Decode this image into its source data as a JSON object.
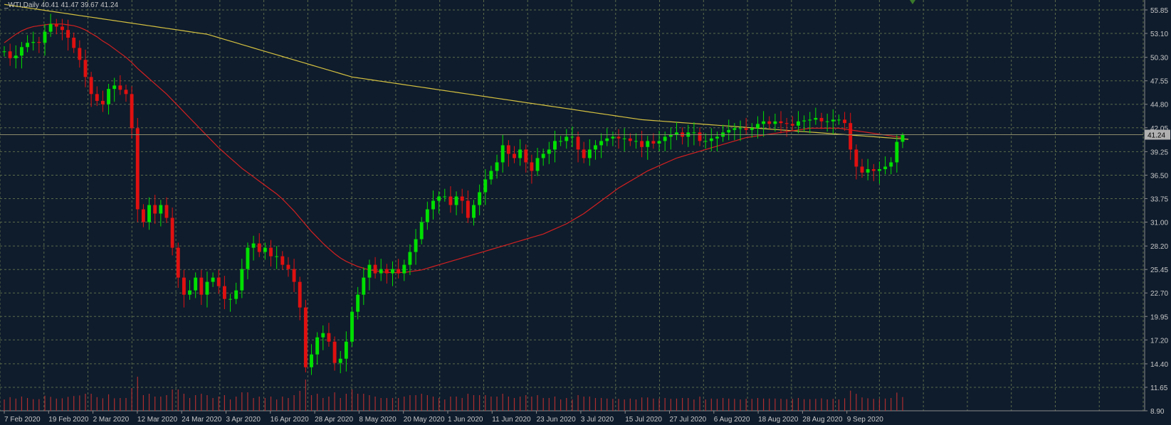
{
  "chart_data": {
    "type": "candlestick",
    "symbol_label": "_WTI,Daily  40.41 41.47 39.67 41.24",
    "ohlc_last": {
      "open": 40.41,
      "high": 41.47,
      "low": 39.67,
      "close": 41.24
    },
    "current_price_label": "41.24",
    "y_ticks": [
      "55.85",
      "53.10",
      "50.30",
      "47.55",
      "44.80",
      "42.05",
      "39.25",
      "36.50",
      "33.75",
      "31.00",
      "28.20",
      "25.45",
      "22.70",
      "19.95",
      "17.20",
      "14.40",
      "11.65",
      "8.90"
    ],
    "x_ticks": [
      "7 Feb 2020",
      "19 Feb 2020",
      "2 Mar 2020",
      "12 Mar 2020",
      "24 Mar 2020",
      "3 Apr 2020",
      "16 Apr 2020",
      "28 Apr 2020",
      "8 May 2020",
      "20 May 2020",
      "1 Jun 2020",
      "11 Jun 2020",
      "23 Jun 2020",
      "3 Jul 2020",
      "15 Jul 2020",
      "27 Jul 2020",
      "6 Aug 2020",
      "18 Aug 2020",
      "28 Aug 2020",
      "9 Sep 2020"
    ],
    "ylim": [
      8.9,
      55.85
    ],
    "close": [
      51.0,
      50.2,
      50.5,
      51.5,
      52.0,
      52.1,
      52.0,
      53.3,
      54.2,
      53.9,
      53.5,
      52.6,
      51.4,
      50.0,
      48.0,
      46.0,
      45.2,
      44.8,
      46.6,
      47.0,
      46.5,
      46.0,
      42.0,
      32.5,
      31.0,
      33.0,
      32.0,
      33.0,
      31.5,
      28.0,
      24.5,
      22.5,
      23.0,
      24.5,
      22.5,
      24.0,
      24.5,
      23.5,
      22.0,
      22.0,
      23.0,
      25.5,
      28.0,
      28.5,
      27.5,
      28.0,
      27.0,
      27.0,
      26.0,
      25.5,
      24.0,
      21.0,
      14.0,
      15.5,
      17.5,
      18.0,
      17.0,
      14.5,
      15.0,
      17.0,
      20.5,
      22.5,
      24.5,
      26.0,
      25.0,
      25.5,
      25.0,
      25.5,
      25.0,
      26.0,
      27.5,
      29.0,
      31.0,
      32.5,
      33.5,
      34.0,
      34.0,
      33.0,
      34.0,
      33.5,
      31.5,
      33.0,
      34.5,
      36.0,
      37.0,
      38.0,
      40.0,
      39.0,
      38.5,
      39.5,
      38.0,
      37.0,
      38.5,
      39.0,
      39.5,
      40.5,
      40.5,
      41.0,
      41.0,
      39.5,
      38.5,
      39.5,
      40.0,
      40.5,
      40.8,
      41.0,
      40.8,
      40.8,
      40.5,
      40.5,
      39.8,
      40.5,
      40.2,
      40.5,
      41.0,
      41.2,
      41.5,
      41.0,
      41.5,
      41.5,
      40.5,
      40.5,
      40.8,
      41.0,
      41.5,
      41.8,
      42.0,
      42.0,
      41.8,
      42.0,
      42.5,
      42.8,
      42.5,
      42.8,
      42.6,
      42.5,
      42.3,
      42.8,
      42.9,
      43.0,
      43.2,
      42.8,
      42.8,
      43.0,
      43.0,
      42.6,
      39.5,
      37.5,
      36.8,
      37.2,
      37.0,
      37.2,
      37.5,
      38.0,
      40.4,
      41.24
    ],
    "ma_fast": [
      52.0,
      52.5,
      53.0,
      53.4,
      53.7,
      53.9,
      54.0,
      54.1,
      54.2,
      54.2,
      54.2,
      54.1,
      54.0,
      53.8,
      53.5,
      53.1,
      52.7,
      52.2,
      51.8,
      51.3,
      50.8,
      50.3,
      49.7,
      49.0,
      48.4,
      47.8,
      47.2,
      46.6,
      46.0,
      45.3,
      44.6,
      43.9,
      43.2,
      42.5,
      41.8,
      41.1,
      40.4,
      39.7,
      39.1,
      38.5,
      37.9,
      37.3,
      36.8,
      36.3,
      35.8,
      35.3,
      34.8,
      34.3,
      33.7,
      33.0,
      32.3,
      31.5,
      30.7,
      29.9,
      29.2,
      28.5,
      27.9,
      27.3,
      26.8,
      26.4,
      26.1,
      25.8,
      25.6,
      25.4,
      25.3,
      25.2,
      25.1,
      25.1,
      25.1,
      25.1,
      25.2,
      25.3,
      25.4,
      25.6,
      25.8,
      26.0,
      26.2,
      26.4,
      26.6,
      26.8,
      27.0,
      27.2,
      27.4,
      27.6,
      27.8,
      28.0,
      28.2,
      28.4,
      28.6,
      28.8,
      29.0,
      29.2,
      29.4,
      29.6,
      29.9,
      30.2,
      30.5,
      30.8,
      31.2,
      31.6,
      32.0,
      32.5,
      33.0,
      33.5,
      34.0,
      34.5,
      35.0,
      35.4,
      35.8,
      36.2,
      36.6,
      37.0,
      37.3,
      37.6,
      37.9,
      38.2,
      38.5,
      38.7,
      38.9,
      39.1,
      39.3,
      39.5,
      39.7,
      39.9,
      40.1,
      40.3,
      40.5,
      40.7,
      40.9,
      41.0,
      41.1,
      41.2,
      41.3,
      41.4,
      41.5,
      41.6,
      41.7,
      41.8,
      41.9,
      42.0,
      42.0,
      42.0,
      42.0,
      42.0,
      42.0,
      41.9,
      41.8,
      41.7,
      41.6,
      41.5,
      41.4,
      41.3,
      41.2,
      41.1,
      41.0,
      40.9
    ],
    "ma_slow": [
      56.5,
      56.4,
      56.3,
      56.2,
      56.1,
      56.0,
      55.9,
      55.8,
      55.7,
      55.6,
      55.5,
      55.4,
      55.3,
      55.2,
      55.1,
      55.0,
      54.9,
      54.8,
      54.7,
      54.6,
      54.5,
      54.4,
      54.3,
      54.2,
      54.1,
      54.0,
      53.9,
      53.8,
      53.7,
      53.6,
      53.5,
      53.4,
      53.3,
      53.2,
      53.1,
      53.0,
      52.8,
      52.6,
      52.4,
      52.2,
      52.0,
      51.8,
      51.6,
      51.4,
      51.2,
      51.0,
      50.8,
      50.6,
      50.4,
      50.2,
      50.0,
      49.8,
      49.6,
      49.4,
      49.2,
      49.0,
      48.8,
      48.6,
      48.4,
      48.2,
      48.0,
      47.9,
      47.8,
      47.7,
      47.6,
      47.5,
      47.4,
      47.3,
      47.2,
      47.1,
      47.0,
      46.9,
      46.8,
      46.7,
      46.6,
      46.5,
      46.4,
      46.3,
      46.2,
      46.1,
      46.0,
      45.9,
      45.8,
      45.7,
      45.6,
      45.5,
      45.4,
      45.3,
      45.2,
      45.1,
      45.0,
      44.9,
      44.8,
      44.7,
      44.6,
      44.5,
      44.4,
      44.3,
      44.2,
      44.1,
      44.0,
      43.9,
      43.8,
      43.7,
      43.6,
      43.5,
      43.4,
      43.3,
      43.2,
      43.1,
      43.0,
      42.95,
      42.9,
      42.85,
      42.8,
      42.75,
      42.7,
      42.65,
      42.6,
      42.55,
      42.5,
      42.45,
      42.4,
      42.35,
      42.3,
      42.25,
      42.2,
      42.15,
      42.1,
      42.05,
      42.0,
      41.95,
      41.9,
      41.85,
      41.8,
      41.75,
      41.7,
      41.65,
      41.6,
      41.55,
      41.5,
      41.45,
      41.4,
      41.35,
      41.3,
      41.25,
      41.2,
      41.15,
      41.1,
      41.05,
      41.0,
      40.95,
      40.9,
      40.85,
      40.8,
      40.75,
      40.7
    ],
    "colors": {
      "background": "#0f1c2c",
      "grid": "#5a6a4a",
      "axis": "#8a8a8a",
      "text": "#c8c8c8",
      "bull": "#00e000",
      "bear": "#e01010",
      "ma_fast": "#d22020",
      "ma_slow": "#d4c040",
      "volume": "#c03030",
      "price_line": "#8a8a6a",
      "price_tag_bg": "#b0b0b0",
      "price_tag_text": "#000000"
    }
  }
}
